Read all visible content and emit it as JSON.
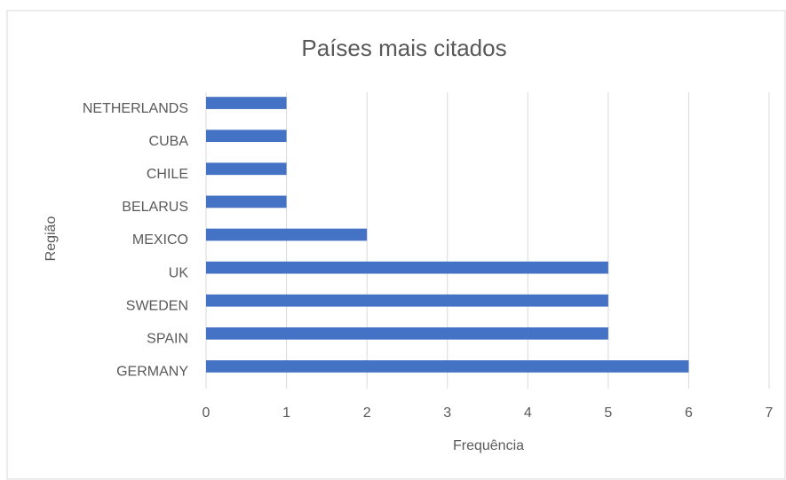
{
  "chart_data": {
    "type": "hbar",
    "title": "Países mais citados",
    "x_label": "Frequência",
    "y_label": "Região",
    "categories": [
      "GERMANY",
      "SPAIN",
      "SWEDEN",
      "UK",
      "MEXICO",
      "BELARUS",
      "CHILE",
      "CUBA",
      "NETHERLANDS"
    ],
    "values": [
      6,
      5,
      5,
      5,
      2,
      1,
      1,
      1,
      1
    ],
    "color": "#4472c4",
    "xlim": [
      0,
      7
    ],
    "xticks": [
      0,
      1,
      2,
      3,
      4,
      5,
      6,
      7
    ],
    "grid": true
  }
}
